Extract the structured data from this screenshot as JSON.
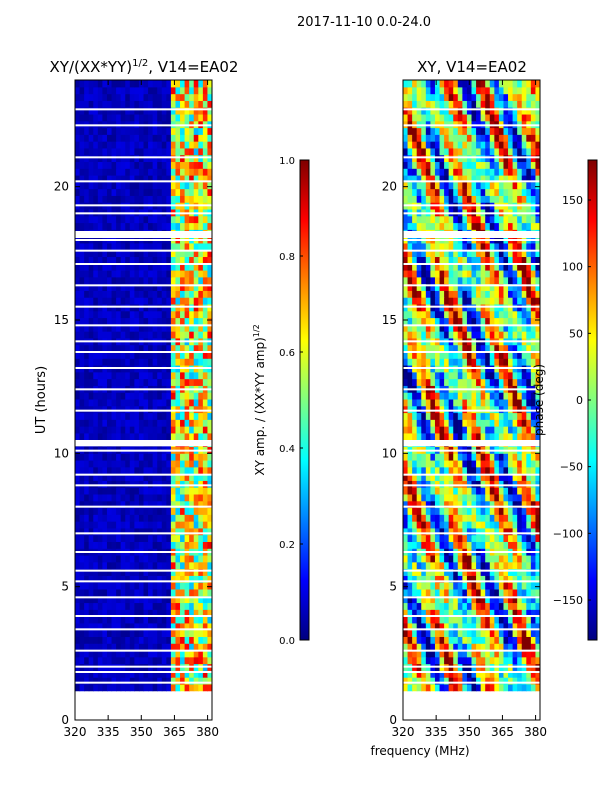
{
  "page_title": "2017-11-10 0.0-24.0",
  "colors": {
    "background": "#ffffff",
    "jet": [
      "#00007f",
      "#0000ff",
      "#0080ff",
      "#00ffff",
      "#80ff80",
      "#ffff00",
      "#ff8000",
      "#ff0000",
      "#7f0000"
    ]
  },
  "chart_data": [
    {
      "type": "heatmap",
      "title": "XY/(XX*YY)",
      "title_exponent": "1/2",
      "title_suffix": ", V14=EA02",
      "xlabel": "",
      "ylabel": "UT (hours)",
      "xlim": [
        320,
        382
      ],
      "ylim": [
        0,
        24
      ],
      "xticks": [
        320,
        335,
        350,
        365,
        380
      ],
      "yticks": [
        0,
        5,
        10,
        15,
        20
      ],
      "colorbar": {
        "label": "XY amp. / (XX*YY amp)",
        "label_exponent": "1/2",
        "range": [
          0.0,
          1.0
        ],
        "ticks": [
          "0.0",
          "0.2",
          "0.4",
          "0.6",
          "0.8",
          "1.0"
        ]
      },
      "data_extent_hours": [
        1.1,
        24.0
      ],
      "data_note": "mostly low amplitude (~0.05) below 362 MHz; elevated 0.3-0.9 between 362 and 381 MHz"
    },
    {
      "type": "heatmap",
      "title": "XY, V14=EA02",
      "xlabel": "frequency (MHz)",
      "ylabel": "",
      "xlim": [
        320,
        382
      ],
      "ylim": [
        0,
        24
      ],
      "xticks": [
        320,
        335,
        350,
        365,
        380
      ],
      "yticks": [
        0,
        5,
        10,
        15,
        20
      ],
      "colorbar": {
        "label": "phase (deg)",
        "range": [
          -180,
          180
        ],
        "ticks": [
          "150",
          "100",
          "50",
          "0",
          "−50",
          "−100",
          "−150"
        ],
        "tick_values": [
          150,
          100,
          50,
          0,
          -50,
          -100,
          -150
        ]
      },
      "data_extent_hours": [
        1.1,
        24.0
      ],
      "data_note": "phase varies across full -180..180 range"
    }
  ]
}
